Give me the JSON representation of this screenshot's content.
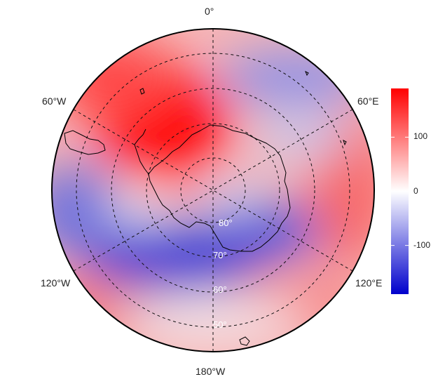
{
  "map": {
    "projection": "south polar stereographic",
    "longitude_labels": {
      "top": "0°",
      "bottom": "180°W",
      "upper_left": "60°W",
      "upper_right": "60°E",
      "lower_left": "120°W",
      "lower_right": "120°E"
    },
    "latitude_labels": [
      "80°",
      "70°",
      "60°",
      "50°"
    ],
    "gridlines": "dashed",
    "field_colors": {
      "positive": "#ff0000",
      "zero": "#ffffff",
      "negative": "#0000cc"
    }
  },
  "colorbar": {
    "ticks": [
      "100",
      "0",
      "-100"
    ],
    "range": [
      -190,
      190
    ],
    "tick_values": [
      100,
      0,
      -100
    ]
  }
}
